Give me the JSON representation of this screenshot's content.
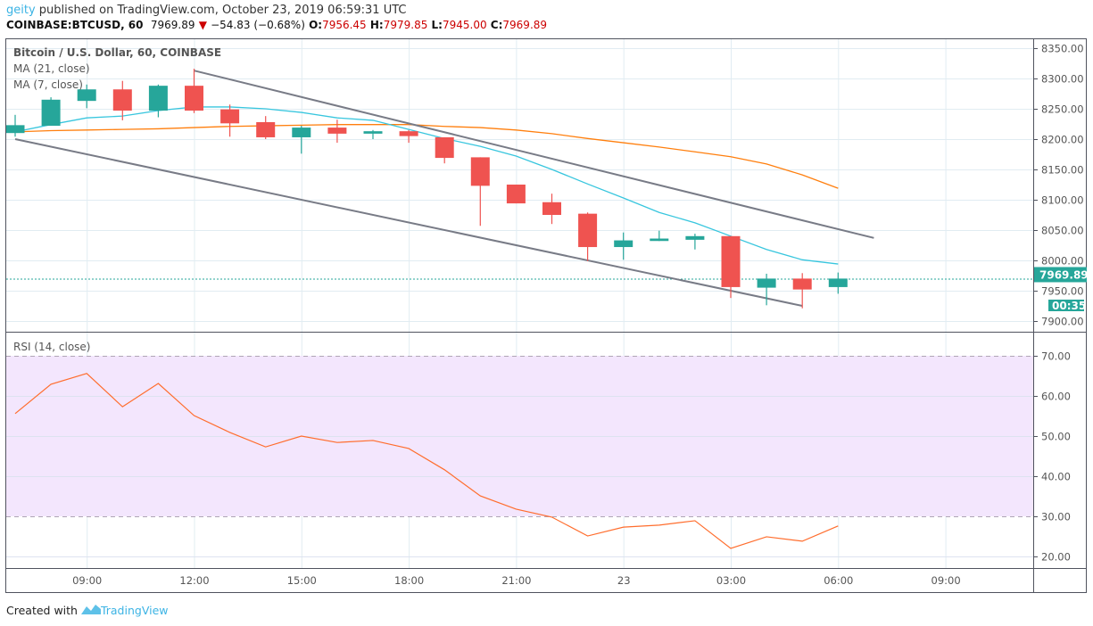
{
  "header": {
    "user": "geity",
    "published": " published on TradingView.com, October 23, 2019 06:59:31 UTC",
    "symbol": "COINBASE:BTCUSD, 60",
    "last": "7969.89",
    "change": "−54.83 (−0.68%)",
    "o_label": "O:",
    "o": "7956.45",
    "h_label": "H:",
    "h": "7979.85",
    "l_label": "L:",
    "l": "7945.00",
    "c_label": "C:",
    "c": "7969.89"
  },
  "footer": {
    "created": "Created with",
    "brand": "TradingView"
  },
  "colors": {
    "up": "#26a69a",
    "down": "#ef5350",
    "ma7": "#38c6de",
    "ma21": "#ff7f0e",
    "trend": "#787b86",
    "rsi": "#ff6d2d",
    "rsi_band": "#f3e6fd"
  },
  "chart_data": [
    {
      "type": "candlestick",
      "title": "Bitcoin / U.S. Dollar, 60, COINBASE",
      "legend": [
        "MA (21, close)",
        "MA (7, close)"
      ],
      "ylim": [
        7880,
        8370
      ],
      "yticks": [
        8350,
        8300,
        8250,
        8200,
        8150,
        8100,
        8050,
        8000,
        7950,
        7900
      ],
      "ytick_labels": [
        "8350.00",
        "8300.00",
        "8250.00",
        "8200.00",
        "8150.00",
        "8100.00",
        "8050.00",
        "8000.00",
        "7950.00",
        "7900.00"
      ],
      "last_price_label": "7969.89",
      "countdown_label": "00:35",
      "xticks": [
        {
          "bar": 2,
          "label": "09:00"
        },
        {
          "bar": 5,
          "label": "12:00"
        },
        {
          "bar": 8,
          "label": "15:00"
        },
        {
          "bar": 11,
          "label": "18:00"
        },
        {
          "bar": 14,
          "label": "21:00"
        },
        {
          "bar": 17,
          "label": "23"
        },
        {
          "bar": 20,
          "label": "03:00"
        },
        {
          "bar": 23,
          "label": "06:00"
        },
        {
          "bar": 26,
          "label": "09:00"
        }
      ],
      "candles": [
        [
          8210,
          8240,
          8204,
          8223
        ],
        [
          8222,
          8269,
          8222,
          8265
        ],
        [
          8263,
          8290,
          8251,
          8282
        ],
        [
          8282,
          8296,
          8231,
          8247
        ],
        [
          8247,
          8290,
          8236,
          8288
        ],
        [
          8288,
          8316,
          8243,
          8247
        ],
        [
          8249,
          8257,
          8204,
          8226
        ],
        [
          8228,
          8238,
          8200,
          8203
        ],
        [
          8203,
          8222,
          8176,
          8219
        ],
        [
          8219,
          8232,
          8194,
          8209
        ],
        [
          8209,
          8215,
          8200,
          8213
        ],
        [
          8213,
          8215,
          8194,
          8205
        ],
        [
          8203,
          8203,
          8160,
          8169
        ],
        [
          8170,
          8170,
          8057,
          8123
        ],
        [
          8125,
          8125,
          8094,
          8094
        ],
        [
          8096,
          8110,
          8060,
          8075
        ],
        [
          8077,
          8079,
          7999,
          8022
        ],
        [
          8022,
          8046,
          8001,
          8033
        ],
        [
          8032,
          8049,
          8032,
          8036
        ],
        [
          8034,
          8044,
          8018,
          8040
        ],
        [
          8040,
          8040,
          7938,
          7956
        ],
        [
          7955,
          7978,
          7926,
          7970
        ],
        [
          7970,
          7979,
          7921,
          7952
        ],
        [
          7956,
          7980,
          7945,
          7970
        ]
      ],
      "ma7": [
        8212,
        8224,
        8235,
        8238,
        8247,
        8253,
        8253,
        8250,
        8244,
        8235,
        8231,
        8216,
        8201,
        8188,
        8172,
        8150,
        8126,
        8103,
        8079,
        8062,
        8040,
        8018,
        8001,
        7994
      ],
      "ma21": [
        8212,
        8214,
        8215,
        8216,
        8217,
        8219,
        8221,
        8222,
        8223,
        8224,
        8224,
        8224,
        8221,
        8219,
        8215,
        8209,
        8201,
        8194,
        8187,
        8179,
        8171,
        8159,
        8141,
        8119
      ],
      "trendlines": [
        {
          "from": [
            5,
            8313
          ],
          "to": [
            24,
            8037
          ]
        },
        {
          "from": [
            0,
            8200
          ],
          "to": [
            22,
            7925
          ]
        }
      ]
    },
    {
      "type": "line",
      "title": "RSI (14, close)",
      "ylim": [
        17,
        76
      ],
      "band": [
        30,
        70
      ],
      "yticks": [
        70,
        60,
        50,
        40,
        30,
        20
      ],
      "ytick_labels": [
        "70.00",
        "60.00",
        "50.00",
        "40.00",
        "30.00",
        "20.00"
      ],
      "values": [
        55.6,
        62.9,
        65.6,
        57.3,
        63.1,
        55.1,
        50.9,
        47.3,
        50.0,
        48.4,
        48.9,
        46.9,
        41.6,
        35.1,
        31.8,
        29.8,
        25.1,
        27.3,
        27.8,
        28.9,
        22.0,
        24.9,
        23.8,
        27.6
      ]
    }
  ]
}
